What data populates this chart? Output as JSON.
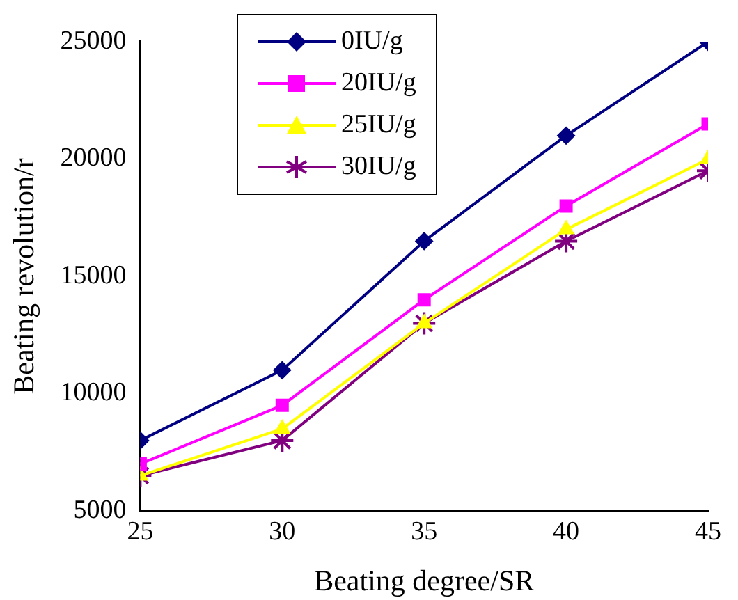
{
  "chart_data": {
    "type": "line",
    "xlabel": "Beating degree/SR",
    "ylabel": "Beating revolution/r",
    "x": [
      25,
      30,
      35,
      40,
      45
    ],
    "xlim": [
      25,
      45
    ],
    "xticks": [
      25,
      30,
      35,
      40,
      45
    ],
    "ylim": [
      5000,
      25000
    ],
    "yticks": [
      5000,
      10000,
      15000,
      20000,
      25000
    ],
    "grid": false,
    "legend": "top",
    "line_style": "solid",
    "series": [
      {
        "name": "0IU/g",
        "color": "#000080",
        "marker": "diamond",
        "values": [
          8000,
          11000,
          16500,
          21000,
          25000
        ]
      },
      {
        "name": "20IU/g",
        "color": "#ff00ff",
        "marker": "square",
        "values": [
          7000,
          9500,
          14000,
          18000,
          21500
        ]
      },
      {
        "name": "25IU/g",
        "color": "#ffff00",
        "marker": "triangle",
        "values": [
          6500,
          8500,
          13000,
          17000,
          20000
        ]
      },
      {
        "name": "30IU/g",
        "color": "#800080",
        "marker": "cross",
        "values": [
          6500,
          8000,
          13000,
          16500,
          19500
        ]
      }
    ]
  }
}
